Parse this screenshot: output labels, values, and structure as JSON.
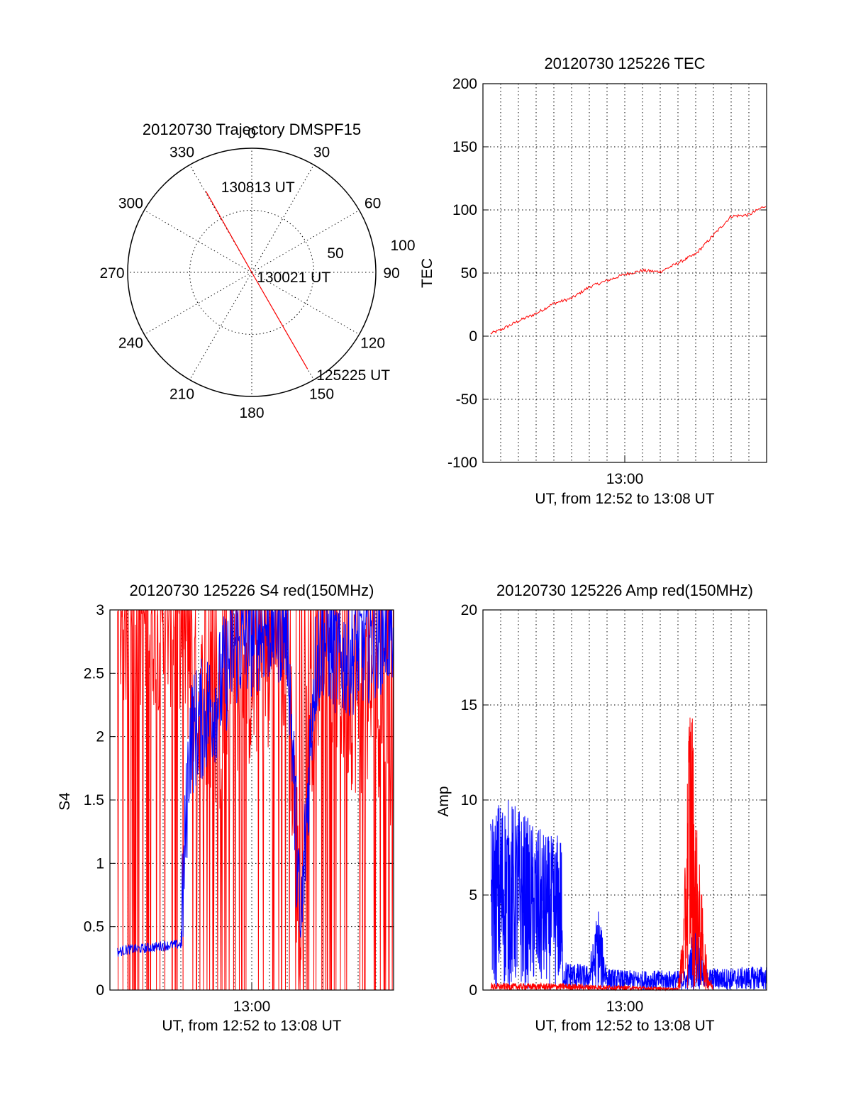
{
  "colors": {
    "red": "#ff0000",
    "blue": "#0000ff",
    "axis": "#000000"
  },
  "chart_data": [
    {
      "id": "trajectory",
      "type": "polar",
      "title": "20120730 Trajectory DMSPF15",
      "angle_labels": [
        "0",
        "30",
        "60",
        "90",
        "120",
        "150",
        "180",
        "210",
        "240",
        "270",
        "300",
        "330"
      ],
      "radius_labels": [
        "50",
        "100"
      ],
      "rmax": 100,
      "grid": true,
      "track": {
        "color": "red",
        "points": [
          {
            "az": 330.5,
            "r": 75
          },
          {
            "az": 0,
            "r": 0
          },
          {
            "az": 150,
            "r": 90
          }
        ]
      },
      "annotations": [
        {
          "text": "130813 UT",
          "az": 337,
          "r": 75
        },
        {
          "text": "130021 UT",
          "az": 96,
          "r": 34
        },
        {
          "text": "125225 UT",
          "az": 150,
          "r": 95
        }
      ]
    },
    {
      "id": "tec",
      "type": "line",
      "title": "20120730 125226 TEC",
      "xlabel": "UT, from 12:52 to 13:08 UT",
      "ylabel": "TEC",
      "xlim": [
        "12:52:00",
        "13:08:00"
      ],
      "x_ticks": [
        "13:00"
      ],
      "ylim": [
        -100,
        200
      ],
      "yticks": [
        "-100",
        "-50",
        "0",
        "50",
        "100",
        "150",
        "200"
      ],
      "grid": true,
      "series": [
        {
          "color": "red",
          "x": [
            "12:52:26",
            "12:53:00",
            "12:54:00",
            "12:55:00",
            "12:56:00",
            "12:57:00",
            "12:58:00",
            "12:59:00",
            "13:00:00",
            "13:01:00",
            "13:02:00",
            "13:03:00",
            "13:04:00",
            "13:05:00",
            "13:06:00",
            "13:07:00",
            "13:08:00"
          ],
          "values": [
            2,
            5,
            12,
            18,
            26,
            30,
            39,
            44,
            49,
            52,
            51,
            58,
            65,
            80,
            95,
            96,
            104
          ]
        }
      ]
    },
    {
      "id": "s4",
      "type": "line",
      "title": "20120730 125226 S4 red(150MHz)",
      "xlabel": "UT, from 12:52 to 13:08 UT",
      "ylabel": "S4",
      "xlim": [
        "12:52:00",
        "13:08:00"
      ],
      "x_ticks": [
        "13:00"
      ],
      "ylim": [
        0,
        3
      ],
      "yticks": [
        "0",
        "0.5",
        "1",
        "1.5",
        "2",
        "2.5",
        "3"
      ],
      "grid": true,
      "series": [
        {
          "color": "red",
          "x": [
            "12:52:26",
            "12:54:00",
            "12:56:00",
            "12:57:00",
            "12:58:00",
            "12:59:00",
            "13:00:00",
            "13:01:00",
            "13:02:00",
            "13:02:45",
            "13:03:00",
            "13:04:00",
            "13:05:00",
            "13:06:00",
            "13:07:00",
            "13:08:00"
          ],
          "values": [
            3,
            3,
            3,
            2.2,
            2.1,
            2.5,
            2.5,
            2.6,
            2.8,
            0.3,
            2.0,
            2.9,
            2.5,
            2.3,
            2.4,
            1.8
          ]
        },
        {
          "color": "blue",
          "x": [
            "12:52:26",
            "12:53:00",
            "12:54:00",
            "12:55:00",
            "12:56:00",
            "12:56:30",
            "12:57:00",
            "12:58:00",
            "12:59:00",
            "13:00:00",
            "13:01:00",
            "13:02:00",
            "13:02:45",
            "13:03:30",
            "13:04:00",
            "13:05:00",
            "13:06:00",
            "13:07:00",
            "13:08:00"
          ],
          "values": [
            0.3,
            0.32,
            0.33,
            0.35,
            0.36,
            2.0,
            2.1,
            2.3,
            2.7,
            2.8,
            2.9,
            2.9,
            0.4,
            2.5,
            2.8,
            2.6,
            2.7,
            2.8,
            2.9
          ]
        }
      ]
    },
    {
      "id": "amp",
      "type": "line",
      "title": "20120730 125226 Amp red(150MHz)",
      "xlabel": "UT, from 12:52 to 13:08 UT",
      "ylabel": "Amp",
      "xlim": [
        "12:52:00",
        "13:08:00"
      ],
      "x_ticks": [
        "13:00"
      ],
      "ylim": [
        0,
        20
      ],
      "yticks": [
        "0",
        "5",
        "10",
        "15",
        "20"
      ],
      "grid": true,
      "series": [
        {
          "color": "blue",
          "x": [
            "12:52:26",
            "12:53:00",
            "12:54:00",
            "12:55:00",
            "12:56:00",
            "12:56:25",
            "12:56:30",
            "12:58:00",
            "12:58:30",
            "12:59:00",
            "13:00:00",
            "13:02:00",
            "13:03:30",
            "13:04:00",
            "13:04:30",
            "13:06:00",
            "13:08:00"
          ],
          "values": [
            8,
            9,
            8.5,
            7.5,
            7,
            7.5,
            1.2,
            1.0,
            4.0,
            0.9,
            0.8,
            0.8,
            0.8,
            3.8,
            0.9,
            0.9,
            1.0
          ]
        },
        {
          "color": "red",
          "x": [
            "12:52:26",
            "12:56:30",
            "13:03:00",
            "13:03:20",
            "13:03:40",
            "13:03:50",
            "13:04:00",
            "13:04:20",
            "13:04:40",
            "13:05:00"
          ],
          "values": [
            0.3,
            0.3,
            0.1,
            4.0,
            16.7,
            14.0,
            9.0,
            5.0,
            1.0,
            0.1
          ]
        }
      ]
    }
  ]
}
